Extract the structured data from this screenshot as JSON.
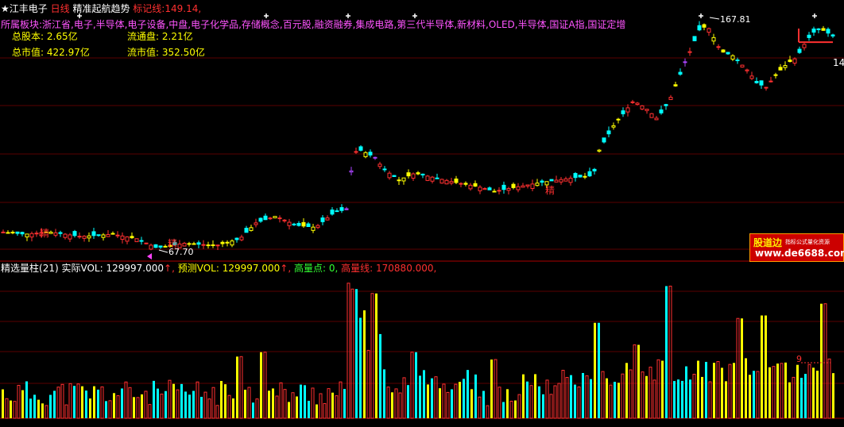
{
  "header": {
    "star": "★",
    "stock_name": "江丰电子",
    "period": "日线",
    "indicator_name": "精准起航趋势",
    "mark_line_label": "标记线:",
    "mark_line_value": "149.14,"
  },
  "sector": {
    "label": "所属板块:",
    "items": "浙江省,电子,半导体,电子设备,中盘,电子化学品,存储概念,百元股,融资融券,集成电路,第三代半导体,新材料,OLED,半导体,国证A指,国证定增"
  },
  "stats": {
    "total_shares_label": "总股本:",
    "total_shares_value": "2.65亿",
    "float_shares_label": "流通盘:",
    "float_shares_value": "2.21亿",
    "total_mv_label": "总市值:",
    "total_mv_value": "422.97亿",
    "float_mv_label": "流市值:",
    "float_mv_value": "352.50亿"
  },
  "volume_header": {
    "name": "精选量柱",
    "param": "(21)",
    "actual_label": "实际VOL:",
    "actual_value": "129997.000",
    "predict_label": "预测VOL:",
    "predict_value": "129997.000",
    "arrow": "↑,",
    "high_point_label": "高量点:",
    "high_point_value": "0,",
    "high_line_label": "高量线:",
    "high_line_value": "170880.000,"
  },
  "chart_data": [
    {
      "type": "candlestick",
      "title": "",
      "annotations": [
        {
          "text": "167.81",
          "kind": "high"
        },
        {
          "text": "67.70",
          "kind": "low"
        },
        {
          "text": "14",
          "kind": "right-edge"
        },
        {
          "text": "精",
          "kind": "signal"
        },
        {
          "text": "精",
          "kind": "signal"
        },
        {
          "text": "精",
          "kind": "signal"
        }
      ],
      "price_range": [
        67.7,
        167.81
      ],
      "legend": "none",
      "grid": "horizontal dark red"
    },
    {
      "type": "bar",
      "title": "",
      "annotations": [
        {
          "text": "9",
          "kind": "high-volume-marker"
        }
      ],
      "legend": "none",
      "grid": "horizontal dark red"
    }
  ],
  "watermark": {
    "logo": "股道边",
    "subtitle": "指标公式量化资源",
    "url": "www.de6688.com"
  },
  "colors": {
    "background": "#000000",
    "up": "#ff3030",
    "down": "#00ffff",
    "yellow": "#ffff00",
    "purple": "#aa44ff",
    "grid": "#5a0000"
  }
}
